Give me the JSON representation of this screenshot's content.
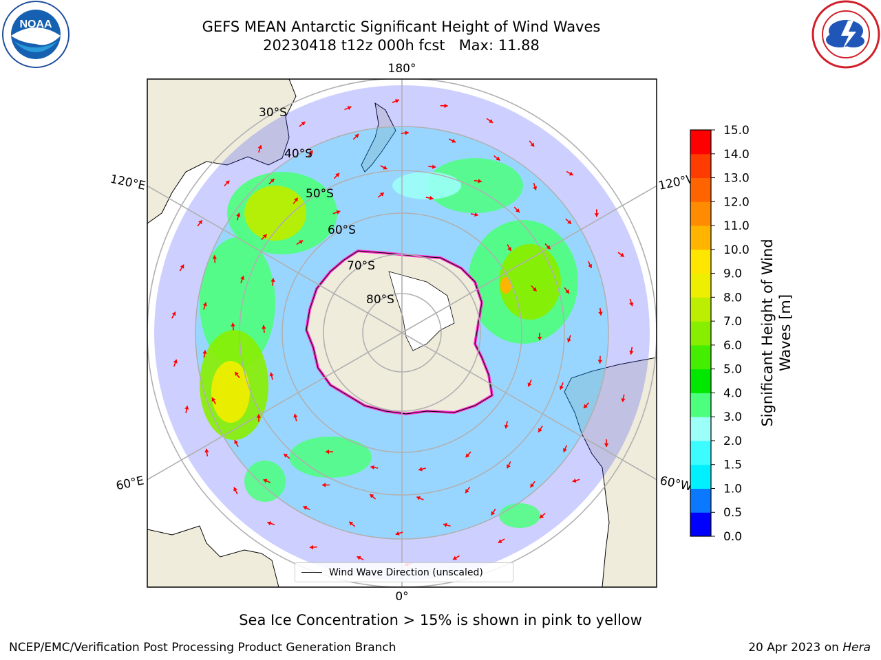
{
  "title": {
    "line1": "GEFS MEAN Antarctic Significant Height of Wind Waves",
    "line2": "20230418 t12z 000h fcst   Max: 11.88"
  },
  "logos": {
    "left": "noaa-logo",
    "left_text": "NOAA",
    "left_ring_text": "NATIONAL OCEANIC AND ATMOSPHERIC ADMINISTRATION · U.S. DEPARTMENT OF COMMERCE",
    "right": "nws-logo",
    "right_ring_text": "NATIONAL WEATHER SERVICE"
  },
  "map": {
    "projection": "south-polar-stereographic",
    "longitude_labels": {
      "top": "180°",
      "bottom": "0°",
      "upper_left": "120°E",
      "upper_right": "120°W",
      "lower_left": "60°E",
      "lower_right": "60°W"
    },
    "latitude_labels": [
      "30°S",
      "40°S",
      "50°S",
      "60°S",
      "70°S",
      "80°S"
    ],
    "legend": "Wind Wave Direction (unscaled)",
    "land_color": "#efecdc",
    "ocean_color": "#ffffff",
    "arrow_color": "#ff0000",
    "sea_ice_colors": [
      "#ff33cc",
      "#ffff66"
    ]
  },
  "colorbar": {
    "label": "Significant Height of Wind Waves [m]",
    "label_line1": "Significant Height of Wind",
    "label_line2": "Waves [m]",
    "ticks": [
      "0.0",
      "0.5",
      "1.0",
      "1.5",
      "2.0",
      "3.0",
      "4.0",
      "5.0",
      "6.0",
      "7.0",
      "8.0",
      "9.0",
      "10.0",
      "11.0",
      "12.0",
      "13.0",
      "14.0",
      "15.0"
    ],
    "colors": [
      "#0000ff",
      "#0a78ff",
      "#00f0ff",
      "#3cfcff",
      "#9cfff8",
      "#4cff7c",
      "#00e800",
      "#44ee00",
      "#88ee00",
      "#bbee00",
      "#eeee00",
      "#ffe600",
      "#ffb400",
      "#ff8c00",
      "#ff6400",
      "#ff3c00",
      "#ff0000"
    ]
  },
  "note": "Sea Ice Concentration > 15% is shown in pink to yellow",
  "footer": {
    "left": "NCEP/EMC/Verification Post Processing Product Generation Branch",
    "right_date": "20 Apr 2023 on ",
    "right_host": "Hera"
  }
}
